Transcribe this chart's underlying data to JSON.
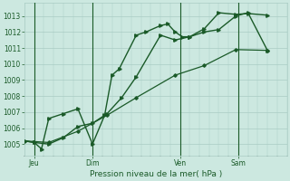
{
  "bg_color": "#cce8e0",
  "grid_color": "#aaccc4",
  "line_color": "#1a5a28",
  "title": "Pression niveau de la mer( hPa )",
  "ylabel_ticks": [
    1005,
    1006,
    1007,
    1008,
    1009,
    1010,
    1011,
    1012,
    1013
  ],
  "xlim": [
    0,
    108
  ],
  "ylim": [
    1004.3,
    1013.8
  ],
  "day_ticks": [
    {
      "x": 4,
      "label": "Jeu"
    },
    {
      "x": 28,
      "label": "Dim"
    },
    {
      "x": 64,
      "label": "Ven"
    },
    {
      "x": 88,
      "label": "Sam"
    }
  ],
  "vlines": [
    4,
    28,
    64,
    88
  ],
  "line1_x": [
    0,
    4,
    7,
    10,
    16,
    22,
    28,
    33,
    36,
    39,
    46,
    50,
    56,
    59,
    62,
    65,
    68,
    74,
    80,
    87,
    92,
    100
  ],
  "line1_y": [
    1005.2,
    1005.1,
    1004.7,
    1006.6,
    1006.9,
    1007.2,
    1005.0,
    1006.8,
    1009.3,
    1009.7,
    1011.8,
    1012.0,
    1012.4,
    1012.5,
    1012.0,
    1011.7,
    1011.7,
    1012.2,
    1013.2,
    1013.1,
    1013.15,
    1013.05
  ],
  "line2_x": [
    0,
    4,
    10,
    16,
    22,
    28,
    34,
    40,
    46,
    56,
    62,
    68,
    74,
    80,
    87,
    92,
    100
  ],
  "line2_y": [
    1005.2,
    1005.1,
    1005.0,
    1005.4,
    1006.1,
    1006.3,
    1006.9,
    1007.9,
    1009.2,
    1011.8,
    1011.5,
    1011.7,
    1012.0,
    1012.15,
    1013.0,
    1013.2,
    1010.85
  ],
  "line3_x": [
    0,
    10,
    22,
    34,
    46,
    62,
    74,
    87,
    100
  ],
  "line3_y": [
    1005.2,
    1005.1,
    1005.8,
    1006.8,
    1007.9,
    1009.3,
    1009.9,
    1010.9,
    1010.85
  ]
}
